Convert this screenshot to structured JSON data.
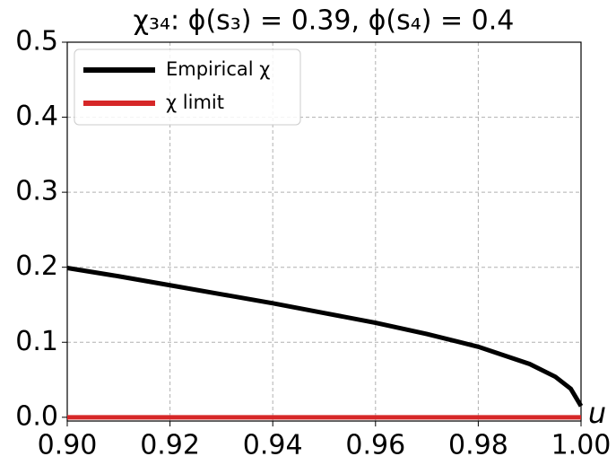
{
  "chart_data": {
    "type": "line",
    "title": "χ₃₄: ϕ(s₃) = 0.39, ϕ(s₄) = 0.4",
    "x_label": "u",
    "x": [
      0.9,
      0.91,
      0.92,
      0.93,
      0.94,
      0.95,
      0.96,
      0.97,
      0.98,
      0.99,
      0.995,
      0.998,
      1.0
    ],
    "series": [
      {
        "name": "Empirical χ",
        "color": "#000000",
        "values": [
          0.199,
          0.188,
          0.176,
          0.164,
          0.152,
          0.139,
          0.126,
          0.111,
          0.094,
          0.071,
          0.054,
          0.038,
          0.015
        ]
      },
      {
        "name": "χ limit",
        "color": "#d62728",
        "values": [
          0,
          0,
          0,
          0,
          0,
          0,
          0,
          0,
          0,
          0,
          0,
          0,
          0
        ]
      }
    ],
    "xlim": [
      0.9,
      1.0
    ],
    "ylim": [
      -0.005,
      0.5
    ],
    "xticks": [
      {
        "value": 0.9,
        "label": "0.90"
      },
      {
        "value": 0.92,
        "label": "0.92"
      },
      {
        "value": 0.94,
        "label": "0.94"
      },
      {
        "value": 0.96,
        "label": "0.96"
      },
      0.98,
      {
        "value": 1.0,
        "label": "1.00"
      }
    ],
    "yticks": [
      {
        "value": 0,
        "label": "0.0"
      },
      0.1,
      0.2,
      0.3,
      0.4,
      0.5
    ],
    "grid": true,
    "legend": "upper-left"
  }
}
